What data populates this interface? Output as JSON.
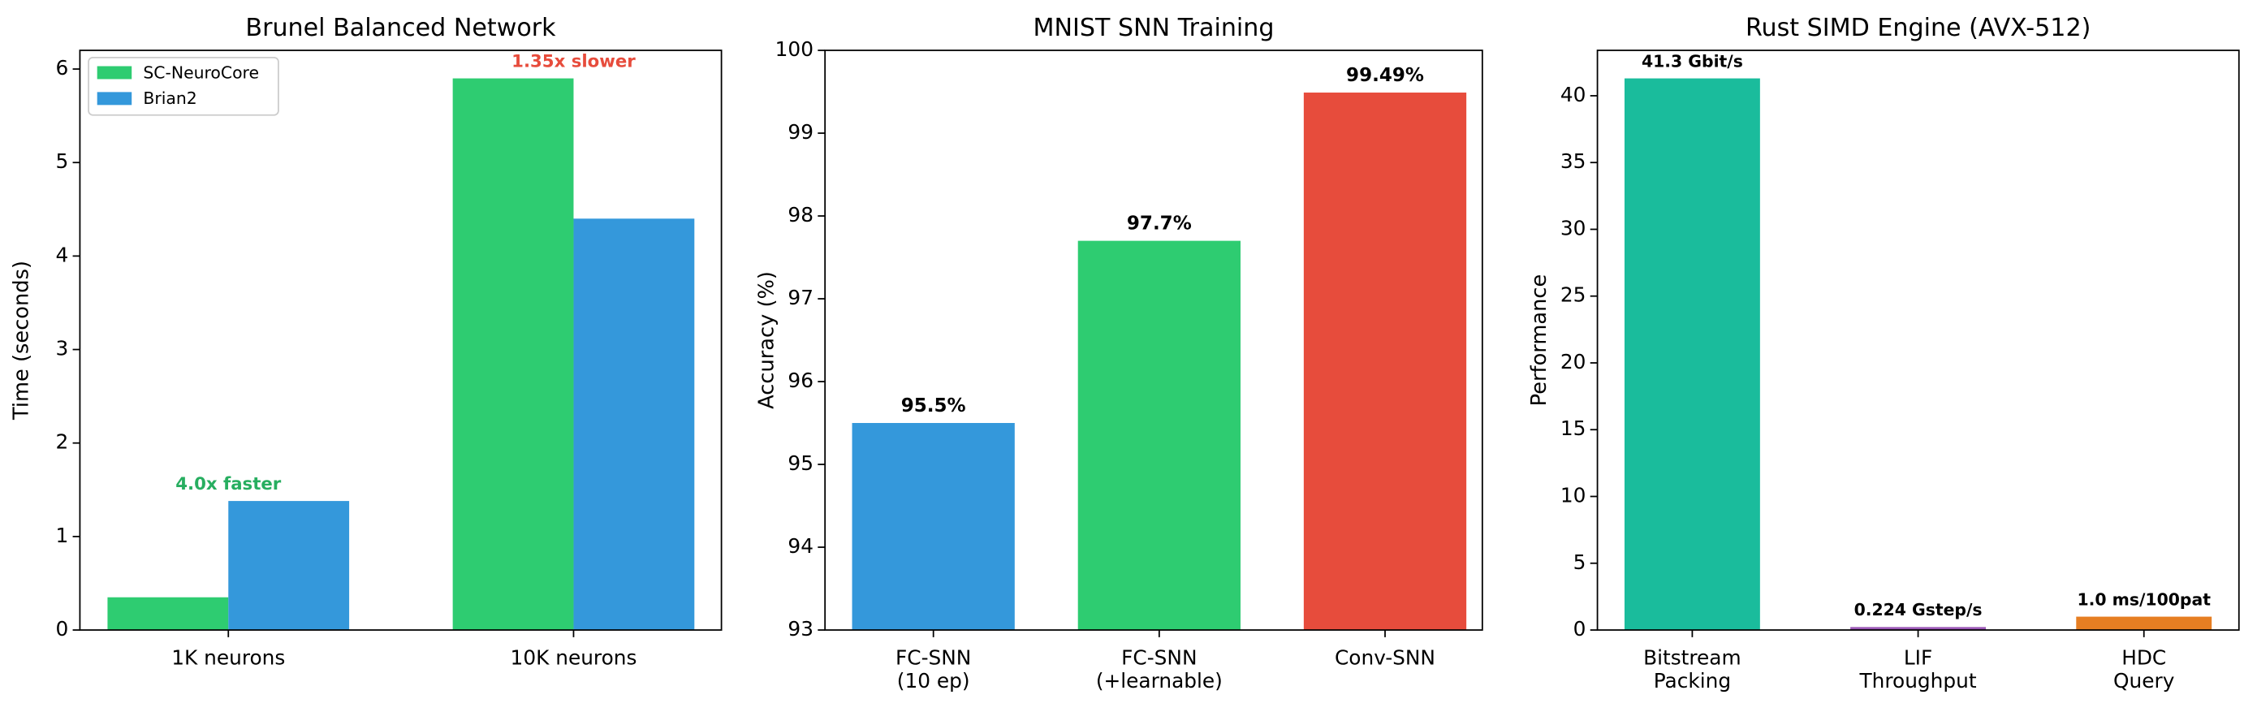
{
  "chart_data": [
    {
      "type": "bar",
      "title": "Brunel Balanced Network",
      "y_label": "Time (seconds)",
      "categories": [
        "1K neurons",
        "10K neurons"
      ],
      "series": [
        {
          "name": "SC-NeuroCore",
          "color": "#2ecc71",
          "values": [
            0.35,
            5.9
          ]
        },
        {
          "name": "Brian2",
          "color": "#3498db",
          "values": [
            1.38,
            4.4
          ]
        }
      ],
      "annotations": [
        {
          "text": "4.0x faster",
          "color": "#27ae60"
        },
        {
          "text": "1.35x slower",
          "color": "#e74c3c"
        }
      ],
      "ylim": [
        0,
        6.2
      ],
      "yticks": [
        0,
        1,
        2,
        3,
        4,
        5,
        6
      ],
      "legend": "upper left"
    },
    {
      "type": "bar",
      "title": "MNIST SNN Training",
      "y_label": "Accuracy (%)",
      "categories": [
        "FC-SNN\n(10 ep)",
        "FC-SNN\n(+learnable)",
        "Conv-SNN"
      ],
      "values": [
        95.5,
        97.7,
        99.49
      ],
      "value_labels": [
        "95.5%",
        "97.7%",
        "99.49%"
      ],
      "colors": [
        "#3498db",
        "#2ecc71",
        "#e74c3c"
      ],
      "ylim": [
        93,
        100
      ],
      "yticks": [
        93,
        94,
        95,
        96,
        97,
        98,
        99,
        100
      ]
    },
    {
      "type": "bar",
      "title": "Rust SIMD Engine (AVX-512)",
      "y_label": "Performance",
      "categories": [
        "Bitstream\nPacking",
        "LIF\nThroughput",
        "HDC\nQuery"
      ],
      "values": [
        41.3,
        0.224,
        1.0
      ],
      "value_labels": [
        "41.3 Gbit/s",
        "0.224 Gstep/s",
        "1.0 ms/100pat"
      ],
      "colors": [
        "#1abc9c",
        "#9b59b6",
        "#e67e22"
      ],
      "ylim": [
        0,
        43.4
      ],
      "yticks": [
        0,
        5,
        10,
        15,
        20,
        25,
        30,
        35,
        40
      ]
    }
  ]
}
